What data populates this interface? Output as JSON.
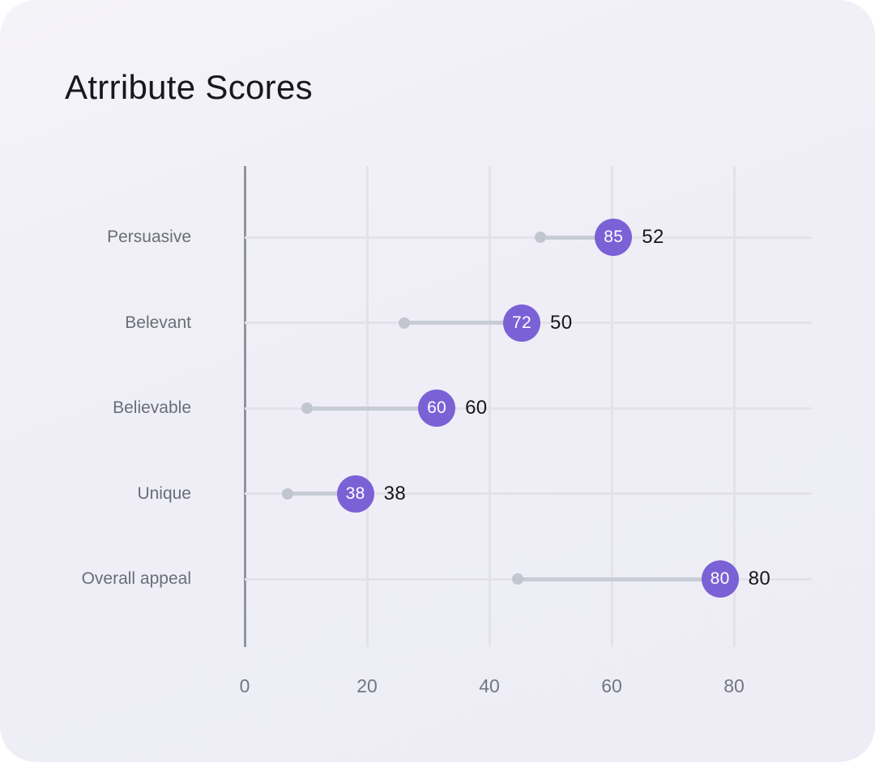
{
  "card": {
    "title": "Atrribute Scores",
    "background": "#efeef6"
  },
  "colors": {
    "accent_purple": "#7b61d6",
    "badge_text": "#ffffff",
    "start_dot_gray": "#c2c6ce",
    "connector_gray": "#c8ccd4",
    "grid_line": "#e3e2ea",
    "axis_line": "#8f959e",
    "title_text": "#17171f",
    "muted_text": "#70767f",
    "value_text": "#16161c"
  },
  "chart_data": {
    "type": "lollipop",
    "title": "Atrribute Scores",
    "categories": [
      "Persuasive",
      "Belevant",
      "Believable",
      "Unique",
      "Overall appeal"
    ],
    "series": [
      {
        "name": "start-position",
        "values": [
          48.4,
          26.1,
          10.2,
          7.0,
          44.6
        ]
      },
      {
        "name": "badge-position",
        "values": [
          60.3,
          45.3,
          31.4,
          18.1,
          77.7
        ]
      }
    ],
    "badge_labels": [
      "85",
      "72",
      "60",
      "38",
      "80"
    ],
    "end_labels": [
      "52",
      "50",
      "60",
      "38",
      "80"
    ],
    "x_ticks": [
      "0",
      "20",
      "40",
      "60",
      "80"
    ],
    "x_tick_values": [
      0,
      20,
      40,
      60,
      80
    ],
    "xlim": [
      0,
      92.7
    ],
    "grid": true,
    "legend": false
  }
}
